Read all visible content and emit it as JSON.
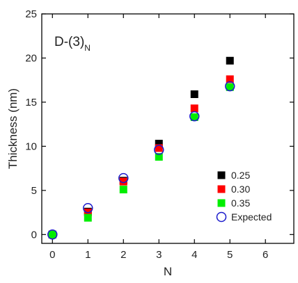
{
  "chart_data": {
    "type": "scatter",
    "annotation": {
      "main": "D-(3)",
      "subscript": "N"
    },
    "xlabel": "N",
    "ylabel": "Thickness (nm)",
    "xlim": [
      -0.3,
      6.8
    ],
    "ylim": [
      -1,
      25
    ],
    "x_ticks": [
      "0",
      "1",
      "2",
      "3",
      "4",
      "5",
      "6"
    ],
    "y_ticks": [
      "0",
      "5",
      "10",
      "15",
      "20",
      "25"
    ],
    "legend_position": "bottom-right",
    "series": [
      {
        "name": "0.25",
        "color": "#000000",
        "marker": "square",
        "points": [
          [
            0,
            0
          ],
          [
            1,
            2.6
          ],
          [
            2,
            6.1
          ],
          [
            3,
            10.3
          ],
          [
            4,
            15.9
          ],
          [
            5,
            19.7
          ]
        ]
      },
      {
        "name": "0.30",
        "color": "#ff0000",
        "marker": "square",
        "points": [
          [
            0,
            0
          ],
          [
            1,
            2.5
          ],
          [
            2,
            6.0
          ],
          [
            3,
            9.8
          ],
          [
            4,
            14.3
          ],
          [
            5,
            17.6
          ]
        ]
      },
      {
        "name": "0.35",
        "color": "#00ee00",
        "marker": "square",
        "points": [
          [
            0,
            0
          ],
          [
            1,
            1.9
          ],
          [
            2,
            5.1
          ],
          [
            3,
            8.8
          ],
          [
            4,
            13.3
          ],
          [
            5,
            16.7
          ]
        ]
      },
      {
        "name": "Expected",
        "color": "#1a1acc",
        "marker": "circle-open",
        "points": [
          [
            0,
            0
          ],
          [
            1,
            3.0
          ],
          [
            2,
            6.4
          ],
          [
            3,
            9.6
          ],
          [
            4,
            13.4
          ],
          [
            5,
            16.8
          ]
        ]
      }
    ]
  }
}
